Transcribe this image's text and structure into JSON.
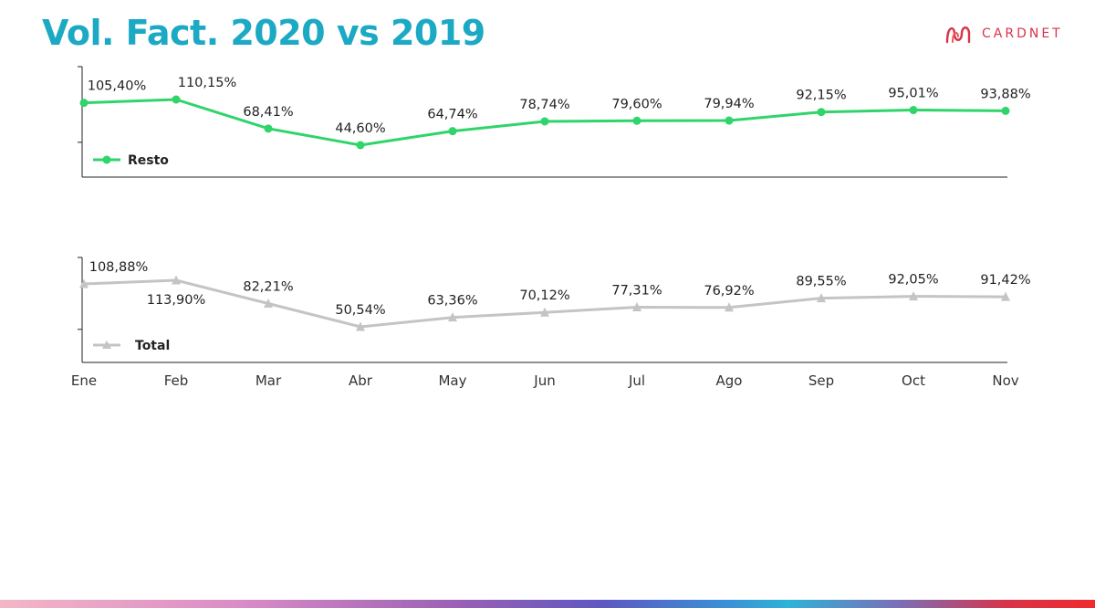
{
  "header": {
    "title": "Vol. Fact. 2020 vs 2019",
    "logo_text": "CARDNET",
    "logo_icon": "cardnet-logo-icon",
    "logo_color": "#d8334a",
    "title_color": "#1ba9c3"
  },
  "chart_data": [
    {
      "type": "line",
      "title": "",
      "categories": [
        "Ene",
        "Feb",
        "Mar",
        "Abr",
        "May",
        "Jun",
        "Jul",
        "Ago",
        "Sep",
        "Oct",
        "Nov"
      ],
      "series": [
        {
          "name": "Resto",
          "color": "#2fd46a",
          "marker": "circle",
          "values": [
            105.4,
            110.15,
            68.41,
            44.6,
            64.74,
            78.74,
            79.6,
            79.94,
            92.15,
            95.01,
            93.88
          ],
          "labels": [
            "105,40%",
            "110,15%",
            "68,41%",
            "44,60%",
            "64,74%",
            "78,74%",
            "79,60%",
            "79,94%",
            "92,15%",
            "95,01%",
            "93,88%"
          ]
        }
      ],
      "legend": "bottom-left",
      "grid": false
    },
    {
      "type": "line",
      "title": "",
      "categories": [
        "Ene",
        "Feb",
        "Mar",
        "Abr",
        "May",
        "Jun",
        "Jul",
        "Ago",
        "Sep",
        "Oct",
        "Nov"
      ],
      "series": [
        {
          "name": "Total",
          "color": "#c4c4c4",
          "marker": "triangle",
          "values": [
            108.88,
            113.9,
            82.21,
            50.54,
            63.36,
            70.12,
            77.31,
            76.92,
            89.55,
            92.05,
            91.42
          ],
          "labels": [
            "108,88%",
            "113,90%",
            "82,21%",
            "50,54%",
            "63,36%",
            "70,12%",
            "77,31%",
            "76,92%",
            "89,55%",
            "92,05%",
            "91,42%"
          ]
        }
      ],
      "legend": "bottom-left",
      "grid": false
    }
  ]
}
